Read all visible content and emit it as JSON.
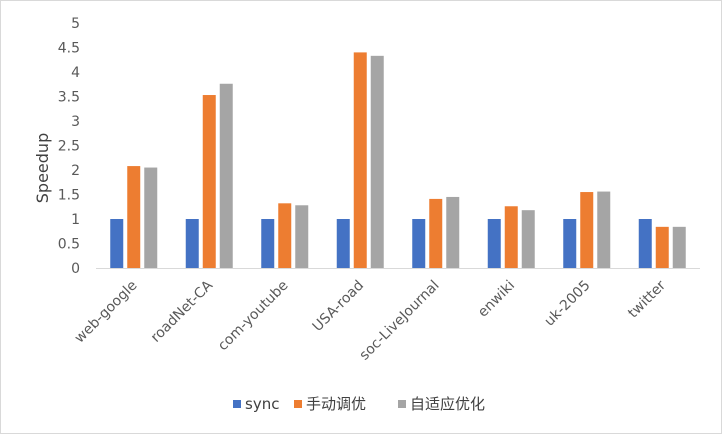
{
  "chart_data": {
    "type": "bar",
    "title": "",
    "xlabel": "",
    "ylabel": "Speedup",
    "ylim": [
      0,
      5
    ],
    "yticks": [
      "0",
      "0.5",
      "1",
      "1.5",
      "2",
      "2.5",
      "3",
      "3.5",
      "4",
      "4.5",
      "5"
    ],
    "grid": false,
    "legend_position": "bottom",
    "categories": [
      "web-google",
      "roadNet-CA",
      "com-youtube",
      "USA-road",
      "soc-LiveJournal",
      "enwiki",
      "uk-2005",
      "twitter"
    ],
    "series": [
      {
        "name": "sync",
        "color": "#4472c4",
        "values": [
          1.0,
          1.0,
          1.0,
          1.0,
          1.0,
          1.0,
          1.0,
          1.0
        ]
      },
      {
        "name": "手动调优",
        "color": "#ed7d31",
        "values": [
          2.08,
          3.53,
          1.32,
          4.4,
          1.41,
          1.26,
          1.55,
          0.84
        ]
      },
      {
        "name": "自适应优化",
        "color": "#a5a5a5",
        "values": [
          2.05,
          3.76,
          1.28,
          4.33,
          1.45,
          1.18,
          1.56,
          0.84
        ]
      }
    ]
  }
}
